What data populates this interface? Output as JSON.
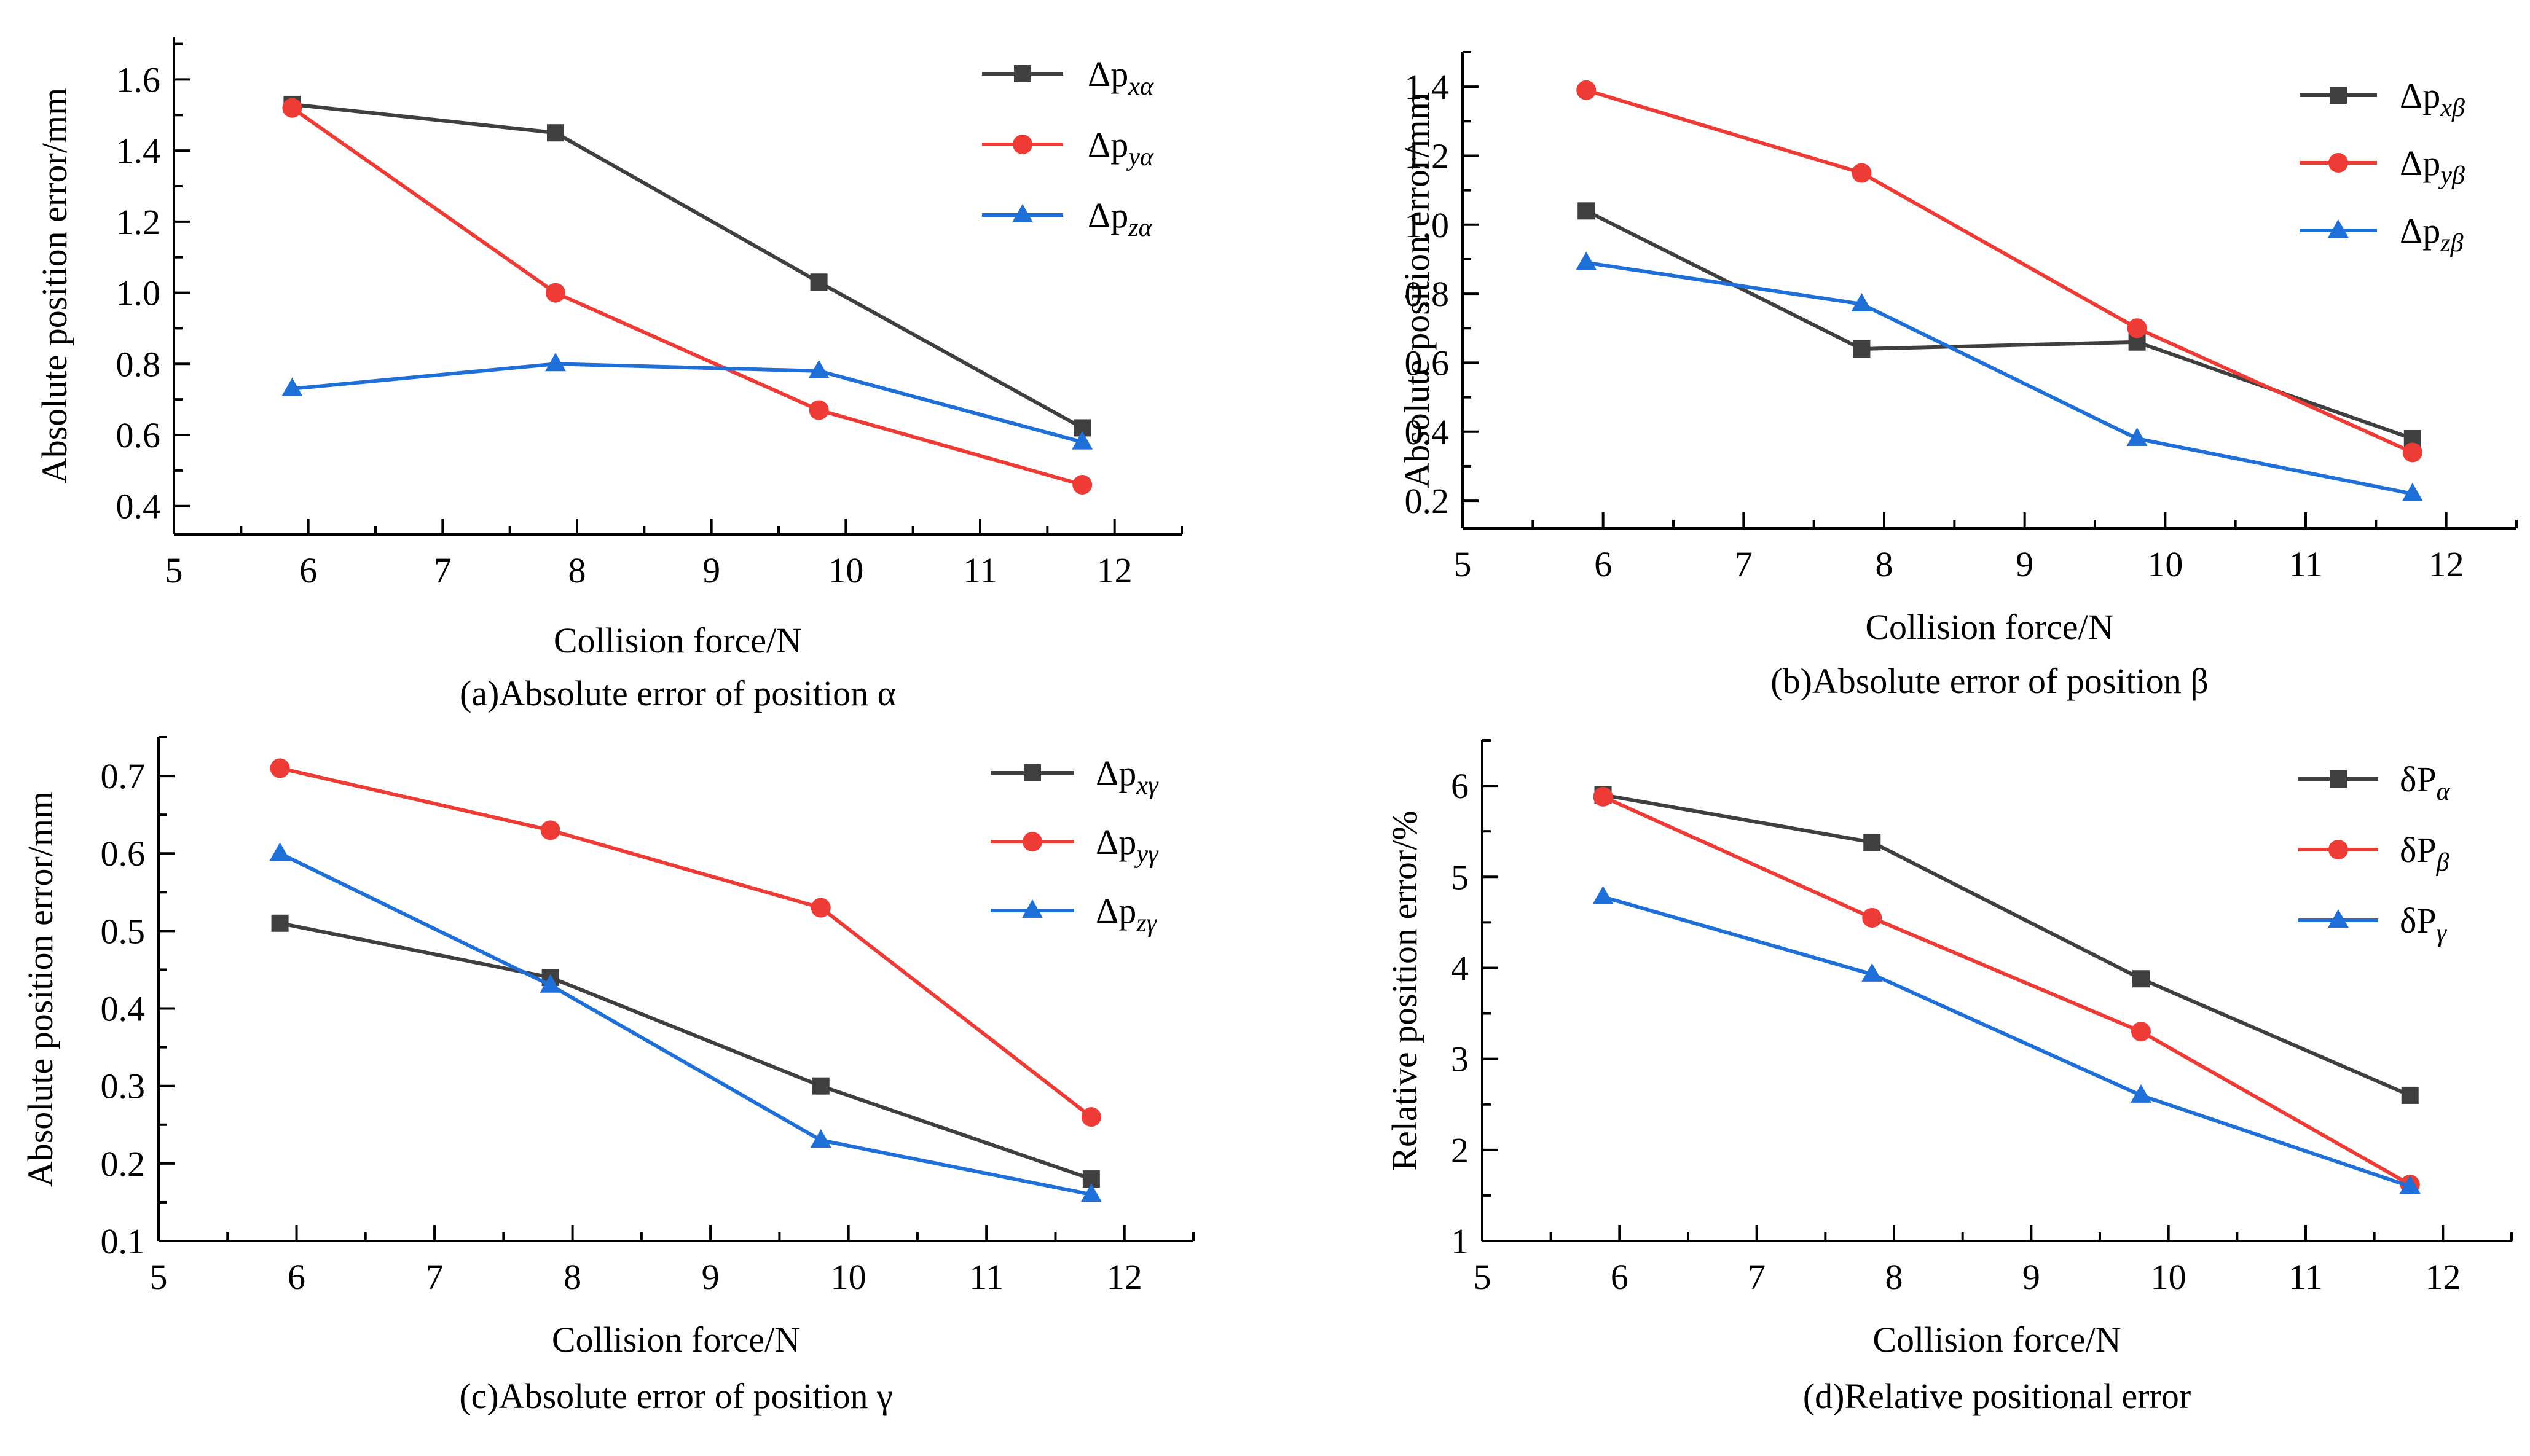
{
  "colors": {
    "gray": "#3f3f3f",
    "red": "#ef3b36",
    "blue": "#1f6fd8"
  },
  "chart_data": [
    {
      "type": "line",
      "caption": "(a)Absolute error of position α",
      "xlabel": "Collision force/N",
      "ylabel": "Absolute position error/mm",
      "xlim": [
        5,
        12.5
      ],
      "ylim": [
        0.32,
        1.72
      ],
      "xticks": [
        5,
        6,
        7,
        8,
        9,
        10,
        11,
        12
      ],
      "yticks": [
        0.4,
        0.6,
        0.8,
        1.0,
        1.2,
        1.4,
        1.6
      ],
      "ytick_labels": [
        "0.4",
        "0.6",
        "0.8",
        "1.0",
        "1.2",
        "1.4",
        "1.6"
      ],
      "legend_position": "top-right",
      "x": [
        5.88,
        7.84,
        9.8,
        11.76
      ],
      "series": [
        {
          "name": "Δp",
          "sub": "xα",
          "color": "#3f3f3f",
          "marker": "square",
          "values": [
            1.53,
            1.45,
            1.03,
            0.62
          ]
        },
        {
          "name": "Δp",
          "sub": "yα",
          "color": "#ef3b36",
          "marker": "circle",
          "values": [
            1.52,
            1.0,
            0.67,
            0.46
          ]
        },
        {
          "name": "Δp",
          "sub": "zα",
          "color": "#1f6fd8",
          "marker": "triangle",
          "values": [
            0.73,
            0.8,
            0.78,
            0.58
          ]
        }
      ]
    },
    {
      "type": "line",
      "caption": "(b)Absolute error of position β",
      "xlabel": "Collision force/N",
      "ylabel": "Absolute position error/mm",
      "xlim": [
        5,
        12.5
      ],
      "ylim": [
        0.12,
        1.5
      ],
      "xticks": [
        5,
        6,
        7,
        8,
        9,
        10,
        11,
        12
      ],
      "yticks": [
        0.2,
        0.4,
        0.6,
        0.8,
        1.0,
        1.2,
        1.4
      ],
      "ytick_labels": [
        "0.2",
        "0.4",
        "0.6",
        "0.8",
        "1.0",
        "1.2",
        "1.4"
      ],
      "legend_position": "top-right",
      "x": [
        5.88,
        7.84,
        9.8,
        11.76
      ],
      "series": [
        {
          "name": "Δp",
          "sub": "xβ",
          "color": "#3f3f3f",
          "marker": "square",
          "values": [
            1.04,
            0.64,
            0.66,
            0.38
          ]
        },
        {
          "name": "Δp",
          "sub": "yβ",
          "color": "#ef3b36",
          "marker": "circle",
          "values": [
            1.39,
            1.15,
            0.7,
            0.34
          ]
        },
        {
          "name": "Δp",
          "sub": "zβ",
          "color": "#1f6fd8",
          "marker": "triangle",
          "values": [
            0.89,
            0.77,
            0.38,
            0.22
          ]
        }
      ]
    },
    {
      "type": "line",
      "caption": "(c)Absolute error of position γ",
      "xlabel": "Collision force/N",
      "ylabel": "Absolute position error/mm",
      "xlim": [
        5,
        12.5
      ],
      "ylim": [
        0.1,
        0.75
      ],
      "xticks": [
        5,
        6,
        7,
        8,
        9,
        10,
        11,
        12
      ],
      "yticks": [
        0.1,
        0.2,
        0.3,
        0.4,
        0.5,
        0.6,
        0.7
      ],
      "ytick_labels": [
        "0.1",
        "0.2",
        "0.3",
        "0.4",
        "0.5",
        "0.6",
        "0.7"
      ],
      "legend_position": "top-right",
      "x": [
        5.88,
        7.84,
        9.8,
        11.76
      ],
      "series": [
        {
          "name": "Δp",
          "sub": "xγ",
          "color": "#3f3f3f",
          "marker": "square",
          "values": [
            0.51,
            0.44,
            0.3,
            0.18
          ]
        },
        {
          "name": "Δp",
          "sub": "yγ",
          "color": "#ef3b36",
          "marker": "circle",
          "values": [
            0.71,
            0.63,
            0.53,
            0.26
          ]
        },
        {
          "name": "Δp",
          "sub": "zγ",
          "color": "#1f6fd8",
          "marker": "triangle",
          "values": [
            0.6,
            0.43,
            0.23,
            0.16
          ]
        }
      ]
    },
    {
      "type": "line",
      "caption": "(d)Relative positional error",
      "xlabel": "Collision force/N",
      "ylabel": "Relative position error/%",
      "xlim": [
        5,
        12.5
      ],
      "ylim": [
        1,
        6.5
      ],
      "xticks": [
        5,
        6,
        7,
        8,
        9,
        10,
        11,
        12
      ],
      "yticks": [
        1,
        2,
        3,
        4,
        5,
        6
      ],
      "ytick_labels": [
        "1",
        "2",
        "3",
        "4",
        "5",
        "6"
      ],
      "legend_position": "top-right",
      "x": [
        5.88,
        7.84,
        9.8,
        11.76
      ],
      "series": [
        {
          "name": "δP",
          "sub": "α",
          "color": "#3f3f3f",
          "marker": "square",
          "values": [
            5.9,
            5.38,
            3.88,
            2.6
          ]
        },
        {
          "name": "δP",
          "sub": "β",
          "color": "#ef3b36",
          "marker": "circle",
          "values": [
            5.88,
            4.55,
            3.3,
            1.62
          ]
        },
        {
          "name": "δP",
          "sub": "γ",
          "color": "#1f6fd8",
          "marker": "triangle",
          "values": [
            4.78,
            3.93,
            2.6,
            1.6
          ]
        }
      ]
    }
  ]
}
